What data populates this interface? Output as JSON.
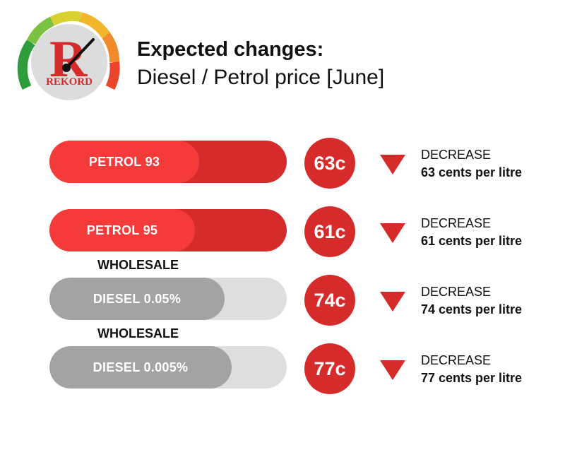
{
  "header": {
    "title": "Expected changes:",
    "subtitle": "Diesel / Petrol price [June]",
    "logo_text": "REKORD",
    "logo_letter": "R"
  },
  "colors": {
    "accent_red": "#d62b2b",
    "bar_red_fill": "#f53a3a",
    "bar_grey_fill": "#a3a3a3",
    "bar_grey_track": "#dedede"
  },
  "chart_data": {
    "type": "bar",
    "categories": [
      "PETROL 93",
      "PETROL 95",
      "DIESEL 0.05%",
      "DIESEL 0.005%"
    ],
    "values": [
      63,
      61,
      74,
      77
    ],
    "unit": "cents per litre",
    "direction": "DECREASE",
    "items": [
      {
        "label": "PETROL 93",
        "value_label": "63c",
        "change_label": "DECREASE",
        "change_detail": "63 cents per litre",
        "style": "red",
        "section_label": ""
      },
      {
        "label": "PETROL 95",
        "value_label": "61c",
        "change_label": "DECREASE",
        "change_detail": "61 cents per litre",
        "style": "red",
        "section_label": ""
      },
      {
        "label": "DIESEL 0.05%",
        "value_label": "74c",
        "change_label": "DECREASE",
        "change_detail": "74 cents per litre",
        "style": "grey",
        "section_label": "WHOLESALE"
      },
      {
        "label": "DIESEL 0.005%",
        "value_label": "77c",
        "change_label": "DECREASE",
        "change_detail": "77 cents per litre",
        "style": "grey",
        "section_label": "WHOLESALE"
      }
    ]
  }
}
